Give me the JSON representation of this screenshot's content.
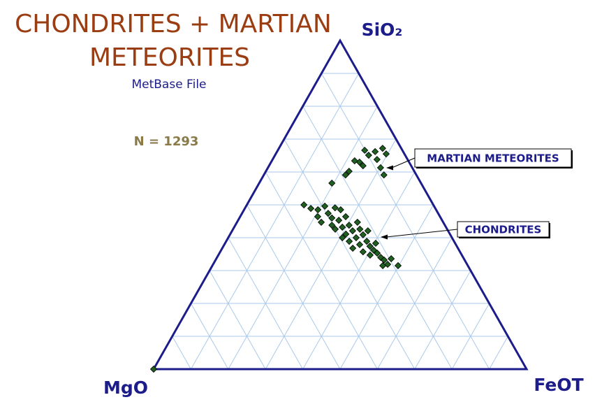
{
  "chart_data": {
    "type": "ternary",
    "title": [
      "CHONDRITES + MARTIAN",
      "METEORITES"
    ],
    "subtitle": "MetBase File",
    "annotation": "N = 1293",
    "axis_labels": {
      "top": "SiO₂",
      "left": "MgO",
      "right": "FeOT"
    },
    "gridlines": [
      10,
      20,
      30,
      40,
      50,
      60,
      70,
      80,
      90
    ],
    "grid": true,
    "frame_color": "#1c1c8a",
    "grid_color": "#a9c9ea",
    "series": [
      {
        "name": "MARTIAN METEORITES",
        "color": "#1f5f1f",
        "sio2": [
          66.6,
          65.1,
          66.2,
          67.2,
          63.8,
          63.0,
          63.4,
          61.9,
          61.3,
          65.5,
          59.1,
          59.1,
          56.6,
          60.2
        ],
        "feot": [
          23.3,
          25.1,
          26.3,
          27.8,
          28.0,
          23.7,
          22.2,
          25.2,
          30.2,
          29.6,
          32.2,
          21.9,
          19.5,
          22.3
        ],
        "mgo": [
          10.1,
          9.8,
          7.5,
          5.0,
          8.2,
          13.3,
          14.4,
          12.9,
          8.5,
          4.9,
          8.7,
          19.0,
          23.9,
          17.5
        ]
      },
      {
        "name": "CHONDRITES",
        "color": "#1f5f1f",
        "sio2": [
          50.0,
          48.9,
          48.5,
          49.6,
          49.1,
          48.5,
          47.4,
          44.7,
          46.0,
          45.3,
          46.4,
          43.2,
          43.8,
          42.6,
          42.1,
          42.6,
          41.1,
          40.0,
          40.9,
          38.9,
          38.9,
          37.9,
          37.4,
          36.8,
          36.2,
          35.7,
          35.3,
          34.0,
          34.7,
          33.2,
          31.9,
          31.5,
          33.6,
          31.5,
          40.0,
          44.7,
          42.1,
          38.3,
          43.8,
          46.4,
          0
        ],
        "feot": [
          15.3,
          17.7,
          19.8,
          21.1,
          24.1,
          25.9,
          23.1,
          22.6,
          24.8,
          27.0,
          28.3,
          29.0,
          30.5,
          27.4,
          32.3,
          34.0,
          31.0,
          34.3,
          35.7,
          33.0,
          37.7,
          36.3,
          39.3,
          35.0,
          40.9,
          38.3,
          42.3,
          43.9,
          40.7,
          45.2,
          46.8,
          49.8,
          46.9,
          45.7,
          30.6,
          32.3,
          36.4,
          40.4,
          25.9,
          20.8,
          0
        ],
        "mgo": [
          34.7,
          33.4,
          31.7,
          29.3,
          26.8,
          25.6,
          29.5,
          32.7,
          29.2,
          27.7,
          25.3,
          27.8,
          25.7,
          30.0,
          25.6,
          23.4,
          27.9,
          25.7,
          23.4,
          28.1,
          23.4,
          25.8,
          23.3,
          28.2,
          22.9,
          26.0,
          22.4,
          22.1,
          24.6,
          21.6,
          21.3,
          18.7,
          19.5,
          22.8,
          29.4,
          23.0,
          21.5,
          21.3,
          30.3,
          32.8,
          100
        ]
      }
    ]
  }
}
